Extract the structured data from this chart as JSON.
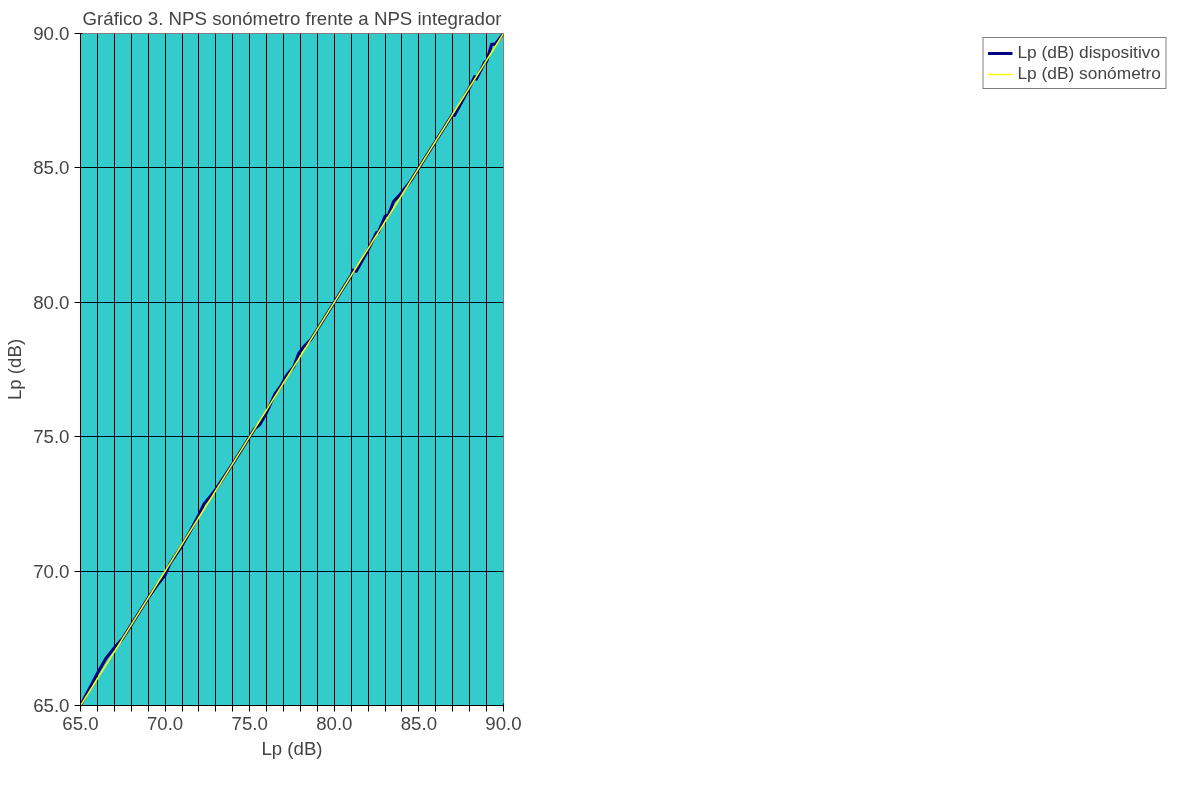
{
  "chart_data": {
    "type": "line",
    "title": "Gráfico 3. NPS sonómetro frente a NPS integrador",
    "xlabel": "Lp (dB)",
    "ylabel": "Lp (dB)",
    "xlim": [
      65,
      90
    ],
    "ylim": [
      65,
      90
    ],
    "xticks": [
      {
        "value": 65,
        "label": "65.0"
      },
      {
        "value": 66,
        "label": null
      },
      {
        "value": 67,
        "label": null
      },
      {
        "value": 68,
        "label": null
      },
      {
        "value": 69,
        "label": null
      },
      {
        "value": 70,
        "label": "70.0"
      },
      {
        "value": 71,
        "label": null
      },
      {
        "value": 72,
        "label": null
      },
      {
        "value": 73,
        "label": null
      },
      {
        "value": 74,
        "label": null
      },
      {
        "value": 75,
        "label": "75.0"
      },
      {
        "value": 76,
        "label": null
      },
      {
        "value": 77,
        "label": null
      },
      {
        "value": 78,
        "label": null
      },
      {
        "value": 79,
        "label": null
      },
      {
        "value": 80,
        "label": "80.0"
      },
      {
        "value": 81,
        "label": null
      },
      {
        "value": 82,
        "label": null
      },
      {
        "value": 83,
        "label": null
      },
      {
        "value": 84,
        "label": null
      },
      {
        "value": 85,
        "label": "85.0"
      },
      {
        "value": 86,
        "label": null
      },
      {
        "value": 87,
        "label": null
      },
      {
        "value": 88,
        "label": null
      },
      {
        "value": 89,
        "label": null
      },
      {
        "value": 90,
        "label": "90.0"
      }
    ],
    "yticks": [
      {
        "value": 65,
        "label": "65.0"
      },
      {
        "value": 70,
        "label": "70.0"
      },
      {
        "value": 75,
        "label": "75.0"
      },
      {
        "value": 80,
        "label": "80.0"
      },
      {
        "value": 85,
        "label": "85.0"
      },
      {
        "value": 90,
        "label": "90.0"
      }
    ],
    "grid": true,
    "legend": "top right",
    "line_style": "solid",
    "series": [
      {
        "name": "Lp (dB) dispositivo",
        "color": "#000080",
        "x": [
          65,
          65.5,
          66,
          66.5,
          67,
          67.5,
          68,
          69,
          69.5,
          70,
          70.3,
          71,
          71.5,
          72,
          72.3,
          72.7,
          73,
          74,
          75,
          75.3,
          75.6,
          76,
          76.5,
          76.8,
          77.2,
          77.6,
          77.9,
          78.2,
          78.6,
          79,
          80,
          81,
          81.1,
          81.3,
          82,
          82.5,
          82.6,
          83,
          83.2,
          83.5,
          83.8,
          84.5,
          85,
          86,
          87,
          87.1,
          88,
          88.3,
          88.4,
          88.9,
          89,
          89.3,
          89.5,
          90
        ],
        "values": [
          65,
          65.6,
          66.2,
          66.75,
          67.15,
          67.5,
          68,
          69,
          69.45,
          69.85,
          70.3,
          70.95,
          71.5,
          72.1,
          72.5,
          72.8,
          73.05,
          74,
          75,
          75.3,
          75.45,
          75.9,
          76.6,
          76.85,
          77.3,
          77.6,
          78.1,
          78.35,
          78.6,
          79,
          80,
          81,
          81.2,
          81.15,
          81.95,
          82.6,
          82.6,
          83.2,
          83.25,
          83.75,
          83.95,
          84.5,
          85,
          86,
          87,
          86.95,
          88,
          88.4,
          88.3,
          88.95,
          88.95,
          89.6,
          89.6,
          90
        ]
      },
      {
        "name": "Lp (dB) sonómetro",
        "color": "#ffff00",
        "x": [
          65,
          90
        ],
        "values": [
          65,
          90
        ]
      }
    ]
  }
}
